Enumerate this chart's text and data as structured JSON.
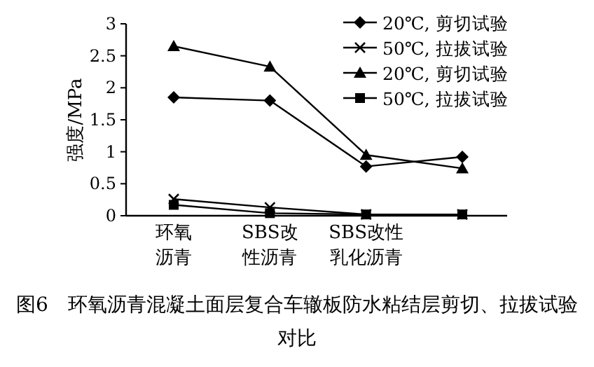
{
  "chart_data": {
    "type": "line",
    "title": "图6　环氧沥青混凝土面层复合车辙板防水粘结层剪切、拉拔试验对比",
    "ylabel": "强度/MPa",
    "categories": [
      "环氧沥青",
      "SBS改性沥青",
      "SBS改性乳化沥青",
      null
    ],
    "series": [
      {
        "name": "20℃, 剪切试验",
        "color": "#000000",
        "marker": "diamond",
        "values": [
          1.85,
          1.8,
          0.77,
          0.92
        ]
      },
      {
        "name": "50℃, 拉拔试验",
        "color": "#000000",
        "marker": "cross",
        "values": [
          0.26,
          0.13,
          0.02,
          0.02
        ]
      },
      {
        "name": "20℃, 剪切试验",
        "color": "#000000",
        "marker": "triangle",
        "values": [
          2.65,
          2.33,
          0.95,
          0.74
        ]
      },
      {
        "name": "50℃, 拉拔试验",
        "color": "#000000",
        "marker": "square",
        "values": [
          0.17,
          0.04,
          0.02,
          0.02
        ]
      }
    ],
    "ylim": [
      0,
      3
    ],
    "yticks": [
      0,
      0.5,
      1,
      1.5,
      2,
      2.5,
      3
    ],
    "grid": false,
    "legend": "top right",
    "line_style": "solid"
  }
}
